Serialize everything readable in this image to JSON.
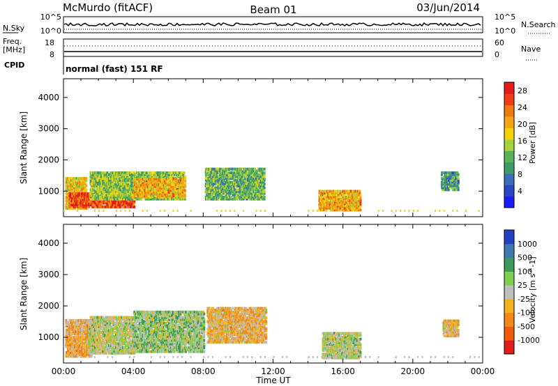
{
  "header": {
    "station": "McMurdo (fitACF)",
    "beam": "Beam 01",
    "date": "03/Jun/2014"
  },
  "top_panel": {
    "left_label": "N.Sky",
    "left_ticks": [
      "10^5",
      "10^0"
    ],
    "right_label": "N.Search",
    "right_ticks": [
      "10^5",
      "10^0"
    ]
  },
  "freq_panel": {
    "left_label_1": "Freq.",
    "left_label_2": "[MHz]",
    "left_ticks": [
      "18",
      "8"
    ],
    "right_label": "Nave",
    "right_ticks": [
      "60",
      "0"
    ],
    "cpid_label": "CPID",
    "cpid_value": "normal (fast) 151 RF"
  },
  "chart_data": [
    {
      "type": "heatmap",
      "name": "power",
      "ylabel": "Slant Range [km]",
      "xlabel": "Time UT",
      "ylim": [
        180,
        4600
      ],
      "xlim_hours": [
        0,
        24
      ],
      "y_ticks": [
        "4000",
        "3000",
        "2000",
        "1000"
      ],
      "colorbar": {
        "label": "Power [dB]",
        "ticks": [
          "28",
          "24",
          "20",
          "16",
          "12",
          "8",
          "4"
        ],
        "range": [
          0,
          30
        ],
        "colors": [
          "#1a1aff",
          "#2a47c4",
          "#3d6fb8",
          "#3f9a6b",
          "#59b35a",
          "#a7d33a",
          "#f3d20c",
          "#f5a416",
          "#f07a12",
          "#ee3c14",
          "#e51a1a"
        ]
      },
      "echo_regions": [
        {
          "t_start": 0.1,
          "t_end": 1.3,
          "r_min": 400,
          "r_max": 1400,
          "value": 18
        },
        {
          "t_start": 0.3,
          "t_end": 4.0,
          "r_min": 450,
          "r_max": 900,
          "value": 26
        },
        {
          "t_start": 1.5,
          "t_end": 6.9,
          "r_min": 700,
          "r_max": 1600,
          "value": 14
        },
        {
          "t_start": 4.0,
          "t_end": 6.9,
          "r_min": 800,
          "r_max": 1400,
          "value": 20
        },
        {
          "t_start": 8.1,
          "t_end": 11.5,
          "r_min": 700,
          "r_max": 1700,
          "value": 12
        },
        {
          "t_start": 14.6,
          "t_end": 17.0,
          "r_min": 350,
          "r_max": 1000,
          "value": 20
        },
        {
          "t_start": 21.6,
          "t_end": 22.6,
          "r_min": 1000,
          "r_max": 1600,
          "value": 10
        }
      ]
    },
    {
      "type": "heatmap",
      "name": "velocity",
      "ylabel": "Slant Range [km]",
      "xlabel": "Time UT",
      "ylim": [
        180,
        4600
      ],
      "xlim_hours": [
        0,
        24
      ],
      "y_ticks": [
        "4000",
        "3000",
        "2000",
        "1000"
      ],
      "colorbar": {
        "label": "Velocity [m s^-1]",
        "ticks": [
          "1000",
          "500",
          "100",
          "25",
          "-25",
          "-100",
          "-500",
          "-1000"
        ],
        "range": [
          -1200,
          1200
        ],
        "colors": [
          "#e51a1a",
          "#f05a0f",
          "#f4881a",
          "#f5b01e",
          "#bdbdbd",
          "#7fd04d",
          "#3d9a5a",
          "#3f7bb0",
          "#2440c0"
        ]
      },
      "echo_regions": [
        {
          "t_start": 0.1,
          "t_end": 1.6,
          "r_min": 350,
          "r_max": 1500,
          "value": -300
        },
        {
          "t_start": 1.4,
          "t_end": 4.0,
          "r_min": 450,
          "r_max": 1600,
          "value": 50
        },
        {
          "t_start": 4.0,
          "t_end": 8.0,
          "r_min": 500,
          "r_max": 1800,
          "value": 200
        },
        {
          "t_start": 8.2,
          "t_end": 11.6,
          "r_min": 800,
          "r_max": 1900,
          "value": -250
        },
        {
          "t_start": 14.8,
          "t_end": 17.0,
          "r_min": 300,
          "r_max": 1100,
          "value": 60
        },
        {
          "t_start": 21.7,
          "t_end": 22.6,
          "r_min": 1000,
          "r_max": 1500,
          "value": -200
        }
      ]
    }
  ],
  "x_ticks": [
    "00:00",
    "04:00",
    "08:00",
    "12:00",
    "16:00",
    "20:00",
    "00:00"
  ],
  "x_axis_label": "Time UT"
}
